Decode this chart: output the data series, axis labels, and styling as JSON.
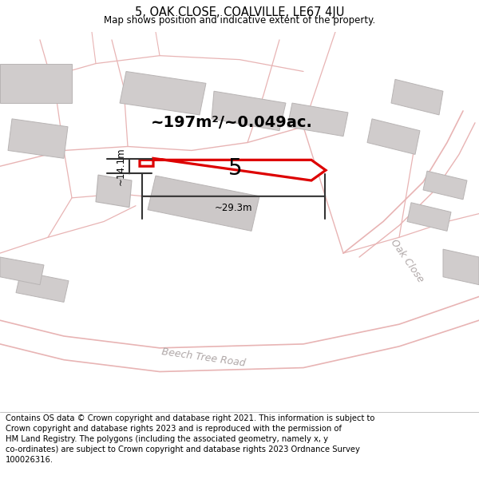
{
  "title_line1": "5, OAK CLOSE, COALVILLE, LE67 4JU",
  "title_line2": "Map shows position and indicative extent of the property.",
  "footer_lines": [
    "Contains OS data © Crown copyright and database right 2021. This information is subject to",
    "Crown copyright and database rights 2023 and is reproduced with the permission of",
    "HM Land Registry. The polygons (including the associated geometry, namely x, y",
    "co-ordinates) are subject to Crown copyright and database rights 2023 Ordnance Survey",
    "100026316."
  ],
  "area_label": "~197m²/~0.049ac.",
  "plot_number": "5",
  "dim_width": "~29.3m",
  "dim_height": "~14.1m",
  "map_bg": "#f0eded",
  "plot_fill": "#ffffff",
  "plot_edge_color": "#dd0000",
  "building_fill": "#d0cccc",
  "building_edge": "#b8b4b4",
  "road_line_color": "#e8b4b4",
  "road_text_color": "#b0a8a8",
  "dim_line_color": "#333333",
  "white": "#ffffff"
}
